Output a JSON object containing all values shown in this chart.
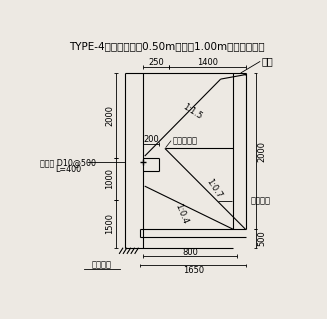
{
  "title": "TYPE-4（嵩上高さが0.50m以上，1.00m以下の場合）",
  "bg_color": "#ede9e3",
  "labels": {
    "hodou": "歩道",
    "chipping": "チッピング",
    "kasage_yoheki": "嵩上擁壁",
    "kisetu_yoheki": "既設擁壁",
    "sashikin": "差し筋 D10@500",
    "L400": "L=400",
    "slope1": "1:1.5",
    "slope2": "1:0.7",
    "slope3": "1:0.4"
  },
  "dims": {
    "d2000_left_top": "2000",
    "d1000": "1000",
    "d1500": "1500",
    "d2000_right": "2000",
    "d500": "500",
    "d250": "250",
    "d1400": "1400",
    "d200": "200",
    "d800": "800",
    "d1650": "1650"
  }
}
